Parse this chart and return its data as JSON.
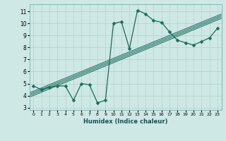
{
  "x": [
    0,
    1,
    2,
    3,
    4,
    5,
    6,
    7,
    8,
    9,
    10,
    11,
    12,
    13,
    14,
    15,
    16,
    17,
    18,
    19,
    20,
    21,
    22,
    23
  ],
  "y": [
    4.8,
    4.5,
    4.7,
    4.8,
    4.8,
    3.6,
    5.0,
    4.9,
    3.4,
    3.6,
    10.0,
    10.15,
    7.9,
    11.1,
    10.8,
    10.25,
    10.1,
    9.3,
    8.6,
    8.4,
    8.2,
    8.5,
    8.8,
    9.6
  ],
  "line_color": "#1a6b5a",
  "marker": "D",
  "marker_size": 2.5,
  "background_color": "#cde8e5",
  "grid_color": "#b8d4d0",
  "xlim": [
    -0.5,
    23.5
  ],
  "ylim": [
    2.8,
    11.6
  ],
  "yticks": [
    3,
    4,
    5,
    6,
    7,
    8,
    9,
    10,
    11
  ],
  "xticks": [
    0,
    1,
    2,
    3,
    4,
    5,
    6,
    7,
    8,
    9,
    10,
    11,
    12,
    13,
    14,
    15,
    16,
    17,
    18,
    19,
    20,
    21,
    22,
    23
  ],
  "xlabel": "Humidex (Indice chaleur)",
  "reg_line_color": "#1a6b5a"
}
